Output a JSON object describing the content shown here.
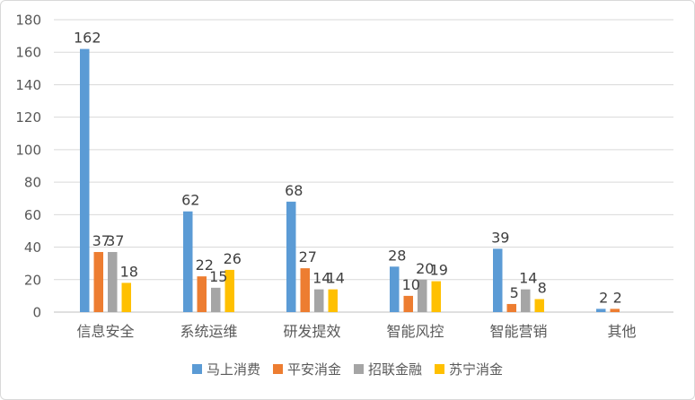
{
  "chart_data": {
    "type": "bar",
    "categories": [
      "信息安全",
      "系统运维",
      "研发提效",
      "智能风控",
      "智能营销",
      "其他"
    ],
    "series": [
      {
        "name": "马上消费",
        "color": "#5b9bd5",
        "values": [
          162,
          62,
          68,
          28,
          39,
          2
        ]
      },
      {
        "name": "平安消金",
        "color": "#ed7d31",
        "values": [
          37,
          22,
          27,
          10,
          5,
          2
        ]
      },
      {
        "name": "招联金融",
        "color": "#a5a5a5",
        "values": [
          37,
          15,
          14,
          20,
          14,
          null
        ]
      },
      {
        "name": "苏宁消金",
        "color": "#ffc000",
        "values": [
          18,
          26,
          14,
          19,
          8,
          null
        ]
      }
    ],
    "y_ticks": [
      "0",
      "20",
      "40",
      "60",
      "80",
      "100",
      "120",
      "140",
      "160",
      "180"
    ],
    "ylim": [
      0,
      180
    ],
    "grid": true,
    "legend_position": "bottom",
    "data_labels": true,
    "title": "",
    "xlabel": "",
    "ylabel": ""
  }
}
